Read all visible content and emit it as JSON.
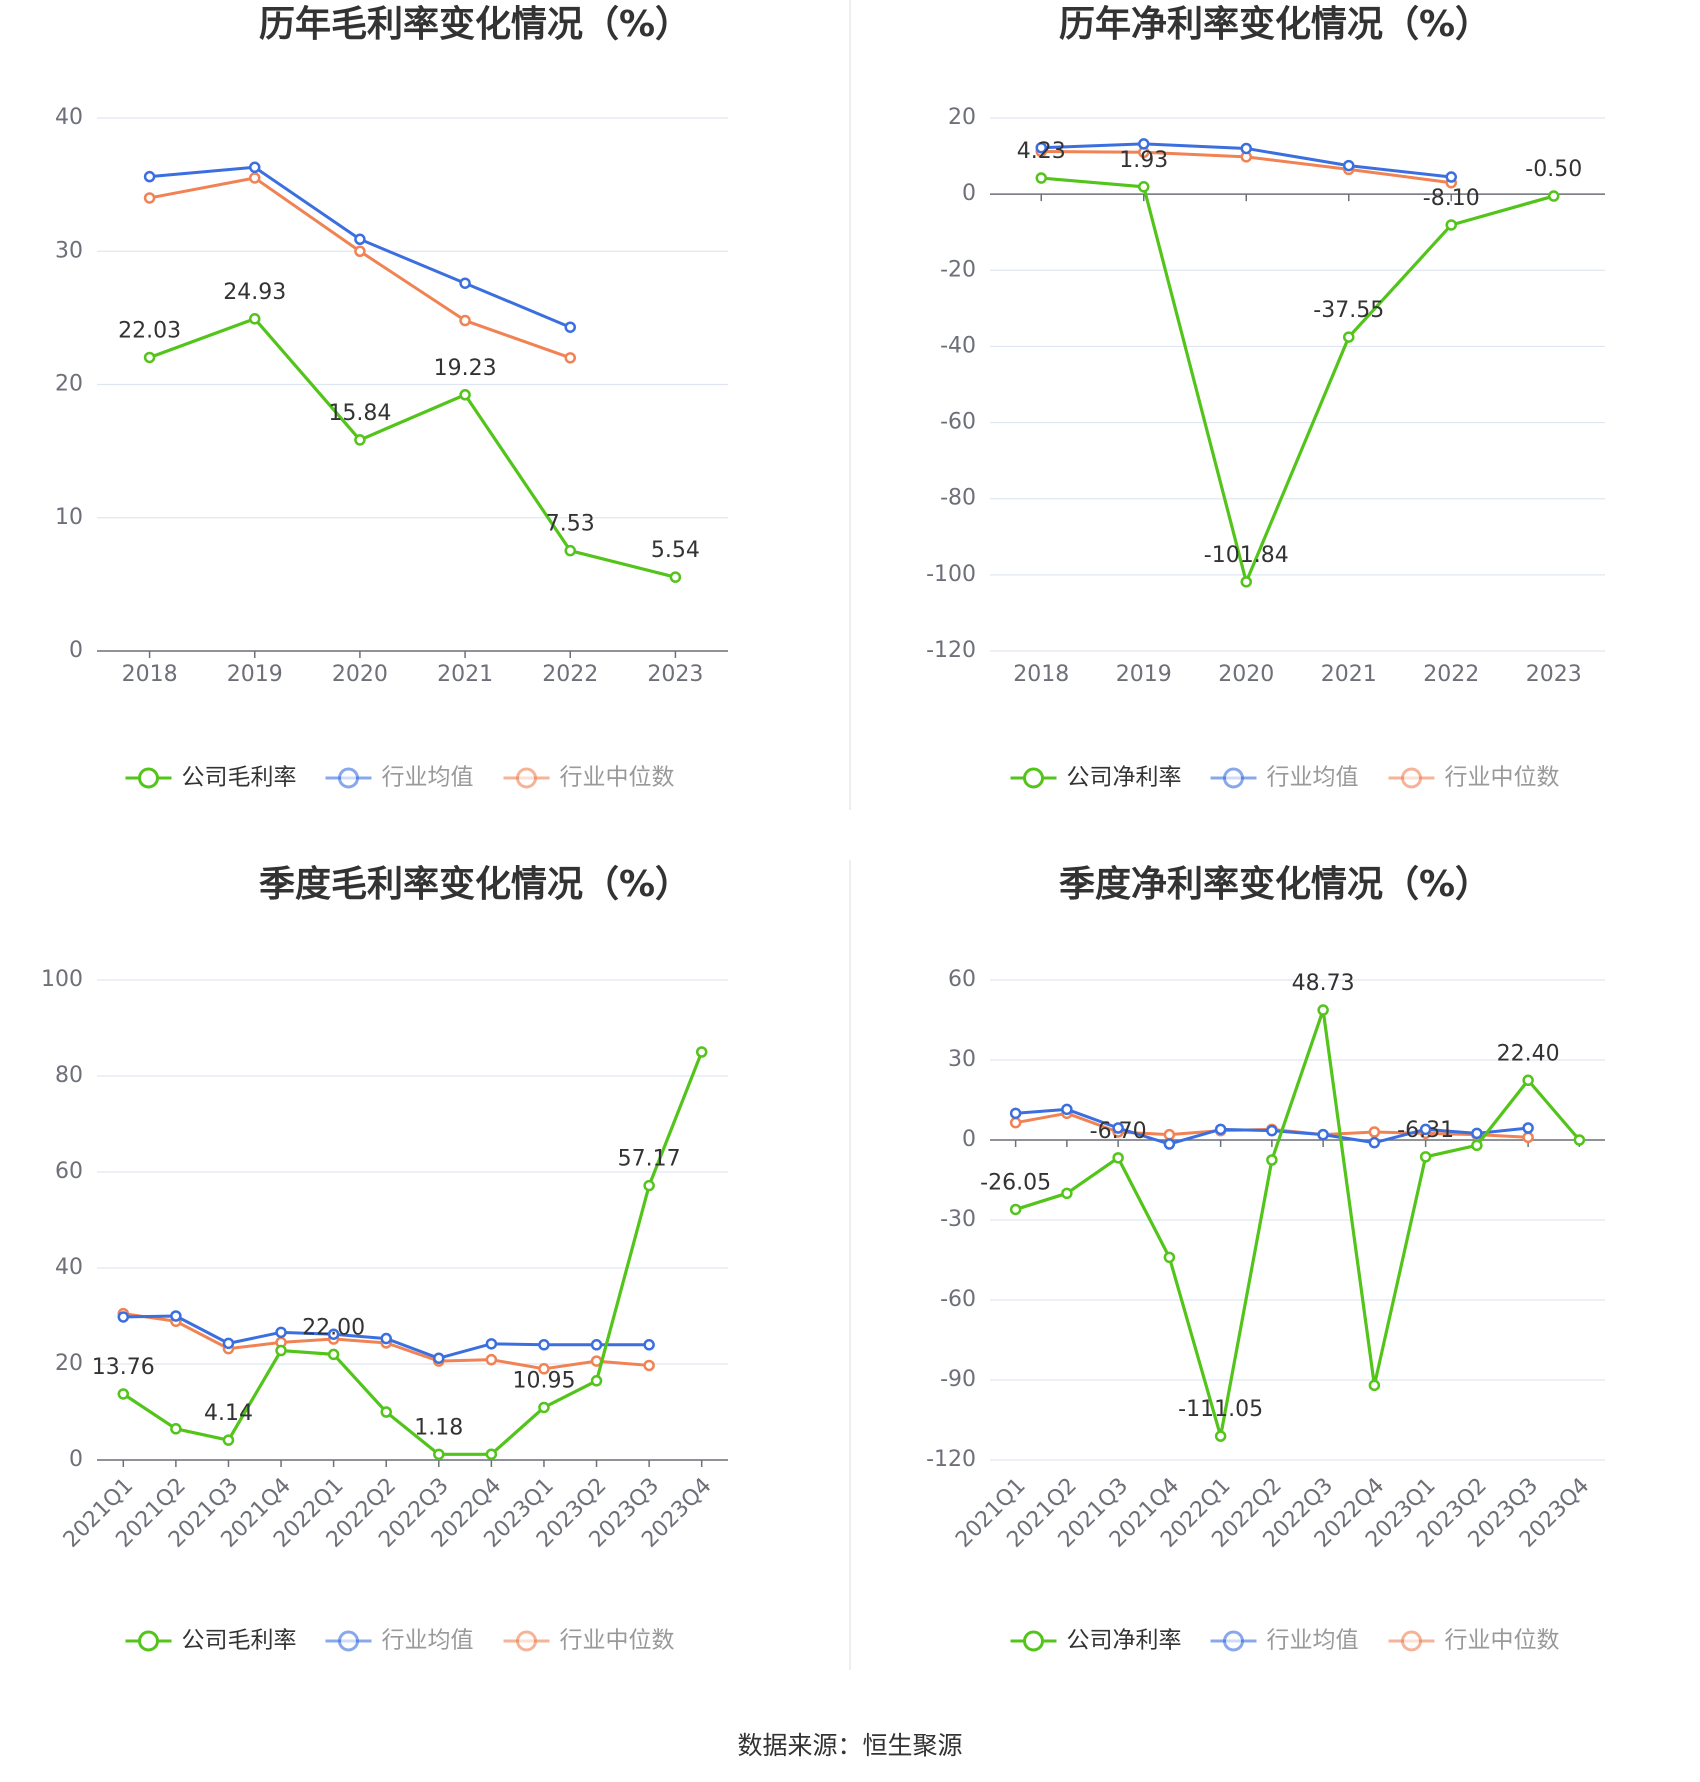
{
  "colors": {
    "company": "#52c41a",
    "industry_mean": "#3b6fe0",
    "industry_median": "#f08253"
  },
  "source": "数据来源：恒生聚源",
  "chart_data": [
    {
      "type": "line",
      "title": "历年毛利率变化情况（%）",
      "categories": [
        "2018",
        "2019",
        "2020",
        "2021",
        "2022",
        "2023"
      ],
      "ylim": [
        0,
        40
      ],
      "yticks": [
        0,
        10,
        20,
        30,
        40
      ],
      "series": [
        {
          "name": "公司毛利率",
          "values": [
            22.03,
            24.93,
            15.84,
            19.23,
            7.53,
            5.54
          ],
          "labels": [
            "22.03",
            "24.93",
            "15.84",
            "19.23",
            "7.53",
            "5.54"
          ]
        },
        {
          "name": "行业均值",
          "values": [
            35.6,
            36.3,
            30.9,
            27.6,
            24.3,
            null
          ]
        },
        {
          "name": "行业中位数",
          "values": [
            34.0,
            35.5,
            30.0,
            24.8,
            22.0,
            null
          ]
        }
      ]
    },
    {
      "type": "line",
      "title": "历年净利率变化情况（%）",
      "categories": [
        "2018",
        "2019",
        "2020",
        "2021",
        "2022",
        "2023"
      ],
      "ylim": [
        -120,
        20
      ],
      "yticks": [
        -120,
        -100,
        -80,
        -60,
        -40,
        -20,
        0,
        20
      ],
      "series": [
        {
          "name": "公司净利率",
          "values": [
            4.23,
            1.93,
            -101.84,
            -37.55,
            -8.1,
            -0.5
          ],
          "labels": [
            "4.23",
            "1.93",
            "-101.84",
            "-37.55",
            "-8.10",
            "-0.50"
          ]
        },
        {
          "name": "行业均值",
          "values": [
            12.2,
            13.2,
            12.0,
            7.5,
            4.5,
            null
          ]
        },
        {
          "name": "行业中位数",
          "values": [
            11.2,
            11.0,
            9.8,
            6.5,
            3.0,
            null
          ]
        }
      ]
    },
    {
      "type": "line",
      "title": "季度毛利率变化情况（%）",
      "categories": [
        "2021Q1",
        "2021Q2",
        "2021Q3",
        "2021Q4",
        "2022Q1",
        "2022Q2",
        "2022Q3",
        "2022Q4",
        "2023Q1",
        "2023Q2",
        "2023Q3",
        "2023Q4"
      ],
      "ylim": [
        0,
        100
      ],
      "yticks": [
        0,
        20,
        40,
        60,
        80,
        100
      ],
      "rotate_x": true,
      "series": [
        {
          "name": "公司毛利率",
          "values": [
            13.76,
            6.5,
            4.14,
            22.8,
            22.0,
            10.0,
            1.18,
            1.2,
            10.95,
            16.5,
            57.17,
            85.0
          ],
          "labels": [
            "13.76",
            "",
            "4.14",
            "",
            "22.00",
            "",
            "1.18",
            "",
            "10.95",
            "",
            "57.17",
            ""
          ]
        },
        {
          "name": "行业均值",
          "values": [
            29.8,
            30.0,
            24.3,
            26.6,
            26.2,
            25.3,
            21.2,
            24.2,
            24.0,
            24.0,
            24.0,
            null
          ]
        },
        {
          "name": "行业中位数",
          "values": [
            30.5,
            28.9,
            23.2,
            24.5,
            25.2,
            24.4,
            20.6,
            20.9,
            19.0,
            20.6,
            19.7,
            null
          ]
        }
      ]
    },
    {
      "type": "line",
      "title": "季度净利率变化情况（%）",
      "categories": [
        "2021Q1",
        "2021Q2",
        "2021Q3",
        "2021Q4",
        "2022Q1",
        "2022Q2",
        "2022Q3",
        "2022Q4",
        "2023Q1",
        "2023Q2",
        "2023Q3",
        "2023Q4"
      ],
      "ylim": [
        -120,
        60
      ],
      "yticks": [
        -120,
        -90,
        -60,
        -30,
        0,
        30,
        60
      ],
      "rotate_x": true,
      "series": [
        {
          "name": "公司净利率",
          "values": [
            -26.05,
            -20.0,
            -6.7,
            -44.0,
            -111.05,
            -7.5,
            48.73,
            -92.0,
            -6.31,
            -2.0,
            22.4,
            0.0
          ],
          "labels": [
            "-26.05",
            "",
            "-6.70",
            "",
            "-111.05",
            "",
            "48.73",
            "",
            "-6.31",
            "",
            "22.40",
            ""
          ]
        },
        {
          "name": "行业均值",
          "values": [
            10.0,
            11.5,
            4.5,
            -1.5,
            4.0,
            3.5,
            2.0,
            -1.0,
            4.0,
            2.5,
            4.5,
            null
          ]
        },
        {
          "name": "行业中位数",
          "values": [
            6.5,
            10.0,
            3.0,
            2.0,
            3.5,
            4.0,
            2.0,
            3.0,
            2.5,
            2.0,
            1.0,
            null
          ]
        }
      ]
    }
  ]
}
